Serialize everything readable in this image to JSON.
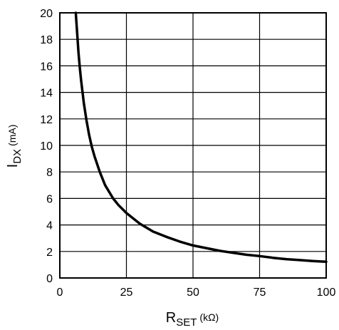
{
  "chart_data": {
    "type": "line",
    "title": "",
    "xlabel": {
      "main": "R",
      "subscript": "SET",
      "unit": "(kΩ)"
    },
    "ylabel": {
      "main": "I",
      "subscript": "DX",
      "unit": "(mA)"
    },
    "xlim": [
      0,
      100
    ],
    "ylim": [
      0,
      20
    ],
    "x_ticks": [
      0,
      25,
      50,
      75,
      100
    ],
    "y_ticks": [
      0,
      2,
      4,
      6,
      8,
      10,
      12,
      14,
      16,
      18,
      20
    ],
    "x_tick_labels": [
      "0",
      "25",
      "50",
      "75",
      "100"
    ],
    "y_tick_labels": [
      "0",
      "2",
      "4",
      "6",
      "8",
      "10",
      "12",
      "14",
      "16",
      "18",
      "20"
    ],
    "grid": true,
    "legend": "none",
    "series": [
      {
        "color": "#000000",
        "x": [
          6,
          6.5,
          7,
          7.5,
          8,
          9,
          10,
          11,
          12,
          13,
          15,
          17,
          20,
          22,
          25,
          30,
          35,
          40,
          45,
          50,
          55,
          60,
          65,
          70,
          75,
          80,
          85,
          90,
          95,
          100
        ],
        "y": [
          20,
          18.5,
          17,
          15.9,
          14.9,
          13.2,
          11.9,
          10.8,
          9.9,
          9.2,
          8.0,
          7.0,
          6.0,
          5.5,
          4.9,
          4.1,
          3.5,
          3.1,
          2.75,
          2.45,
          2.25,
          2.05,
          1.9,
          1.75,
          1.65,
          1.52,
          1.42,
          1.35,
          1.28,
          1.22
        ]
      }
    ]
  }
}
